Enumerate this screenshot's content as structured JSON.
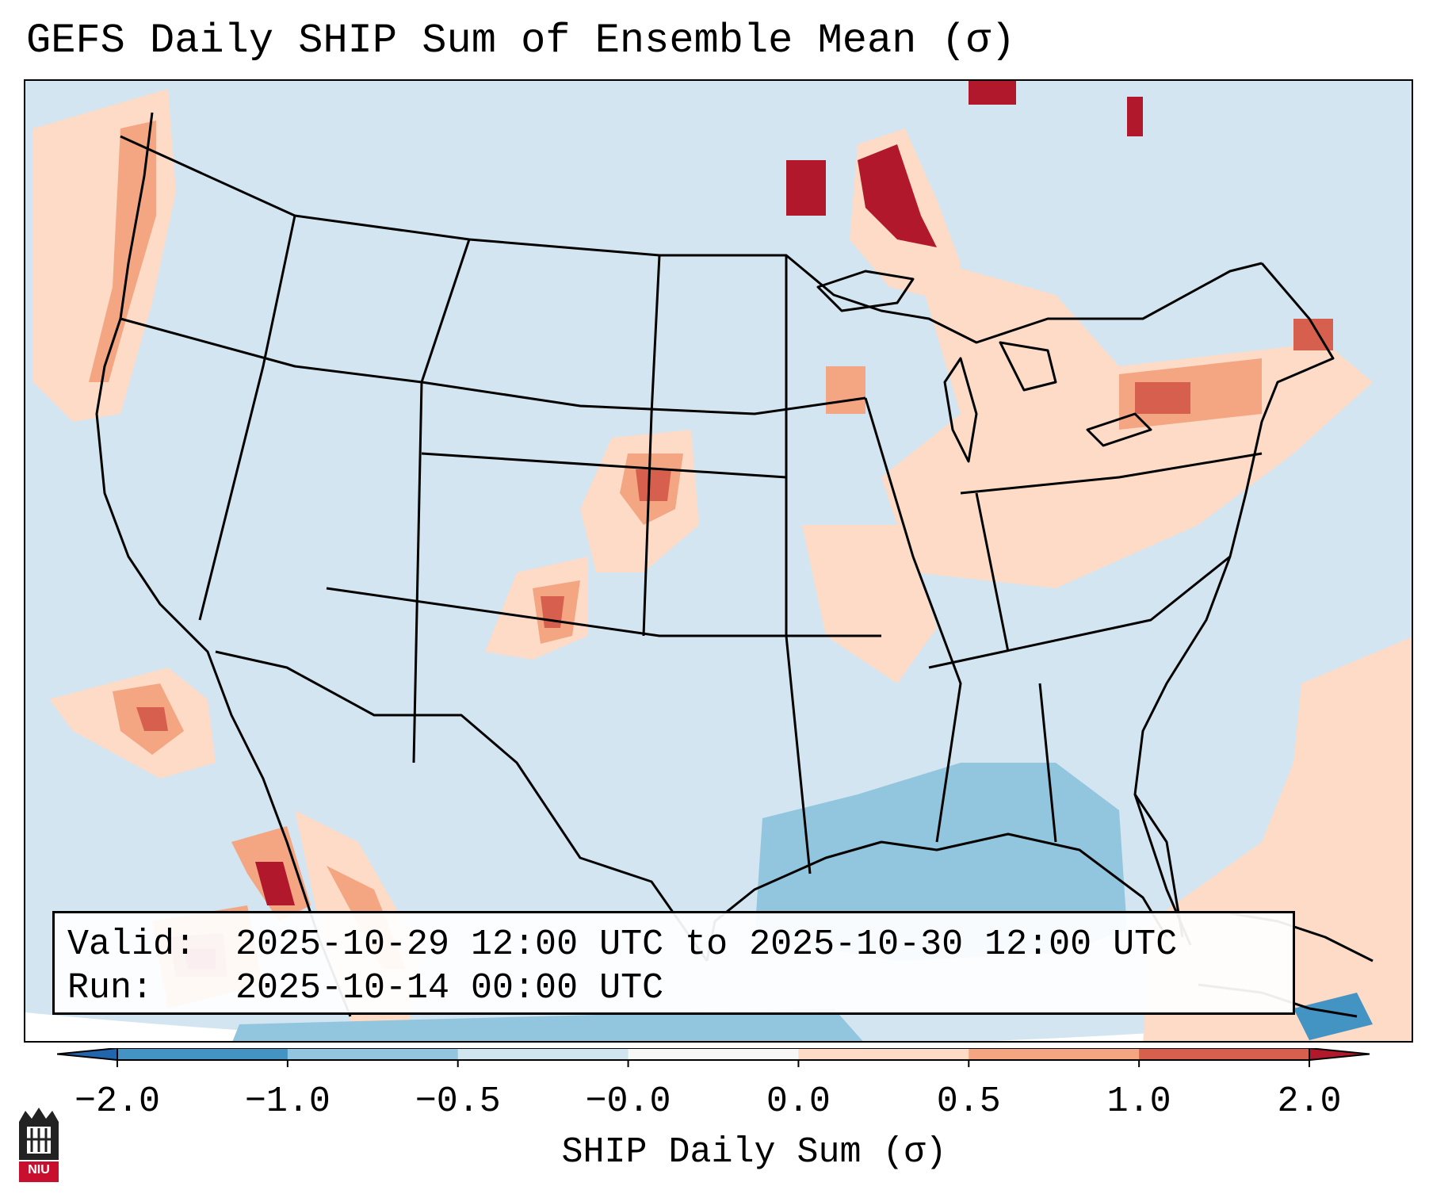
{
  "title": "GEFS Daily SHIP Sum of Ensemble Mean (σ)",
  "info": {
    "valid_label": "Valid:",
    "valid_value": "2025-10-29 12:00 UTC to 2025-10-30 12:00 UTC",
    "run_label": "Run:",
    "run_value": "2025-10-14 00:00 UTC"
  },
  "colorbar": {
    "label": "SHIP Daily Sum (σ)",
    "ticks": [
      "−2.0",
      "−1.0",
      "−0.5",
      "−0.0",
      "0.0",
      "0.5",
      "1.0",
      "2.0"
    ],
    "colors": [
      "#4393c3",
      "#92c5de",
      "#d1e5f0",
      "#f7f7f7",
      "#fddbc7",
      "#f4a582",
      "#d6604d",
      "#b2182b"
    ],
    "extend_low_color": "#2166ac",
    "extend_high_color": "#b2182b"
  },
  "map": {
    "background_color": "#d2e5f1",
    "outside_color": "#ffffff",
    "regions_described": "contiguous United States with Mexico and Caribbean"
  },
  "logo": {
    "text": "NIU"
  }
}
